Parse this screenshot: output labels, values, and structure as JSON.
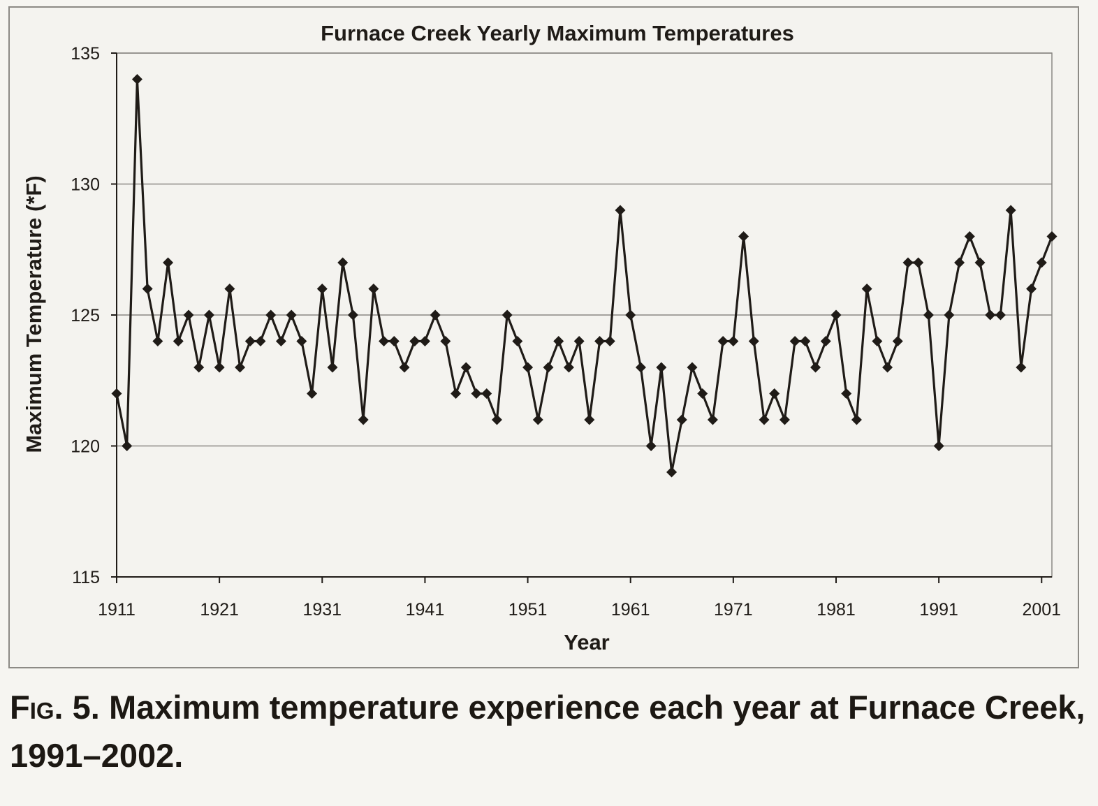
{
  "chart_data": {
    "type": "line",
    "title": "Furnace Creek Yearly Maximum Temperatures",
    "xlabel": "Year",
    "ylabel": "Maximum Temperature (*F)",
    "xlim": [
      1911,
      2002
    ],
    "ylim": [
      115,
      135
    ],
    "xticks": [
      1911,
      1921,
      1931,
      1941,
      1951,
      1961,
      1971,
      1981,
      1991,
      2001
    ],
    "yticks": [
      115,
      120,
      125,
      130,
      135
    ],
    "grid": "horizontal",
    "marker": "diamond",
    "line_color": "#1f1b17",
    "grid_color": "#8a8884",
    "series": [
      {
        "name": "Yearly Maximum Temperature",
        "x": [
          1911,
          1912,
          1913,
          1914,
          1915,
          1916,
          1917,
          1918,
          1919,
          1920,
          1921,
          1922,
          1923,
          1924,
          1925,
          1926,
          1927,
          1928,
          1929,
          1930,
          1931,
          1932,
          1933,
          1934,
          1935,
          1936,
          1937,
          1938,
          1939,
          1940,
          1941,
          1942,
          1943,
          1944,
          1945,
          1946,
          1947,
          1948,
          1949,
          1950,
          1951,
          1952,
          1953,
          1954,
          1955,
          1956,
          1957,
          1958,
          1959,
          1960,
          1961,
          1962,
          1963,
          1964,
          1965,
          1966,
          1967,
          1968,
          1969,
          1970,
          1971,
          1972,
          1973,
          1974,
          1975,
          1976,
          1977,
          1978,
          1979,
          1980,
          1981,
          1982,
          1983,
          1984,
          1985,
          1986,
          1987,
          1988,
          1989,
          1990,
          1991,
          1992,
          1993,
          1994,
          1995,
          1996,
          1997,
          1998,
          1999,
          2000,
          2001,
          2002
        ],
        "values": [
          122,
          120,
          134,
          126,
          124,
          127,
          124,
          125,
          123,
          125,
          123,
          126,
          123,
          124,
          124,
          125,
          124,
          125,
          124,
          122,
          126,
          123,
          127,
          125,
          121,
          126,
          124,
          124,
          123,
          124,
          124,
          125,
          124,
          122,
          123,
          122,
          122,
          121,
          125,
          124,
          123,
          121,
          123,
          124,
          123,
          124,
          121,
          124,
          124,
          129,
          125,
          123,
          120,
          123,
          119,
          121,
          123,
          122,
          121,
          124,
          124,
          128,
          124,
          121,
          122,
          121,
          124,
          124,
          123,
          124,
          125,
          122,
          121,
          126,
          124,
          123,
          124,
          127,
          127,
          125,
          120,
          125,
          127,
          128,
          127,
          125,
          125,
          129,
          123,
          126,
          127,
          128
        ]
      }
    ]
  },
  "caption": {
    "fig_label": "Fig. 5.",
    "text": "Maximum temperature experience each year at Furnace Creek, 1991–2002."
  }
}
